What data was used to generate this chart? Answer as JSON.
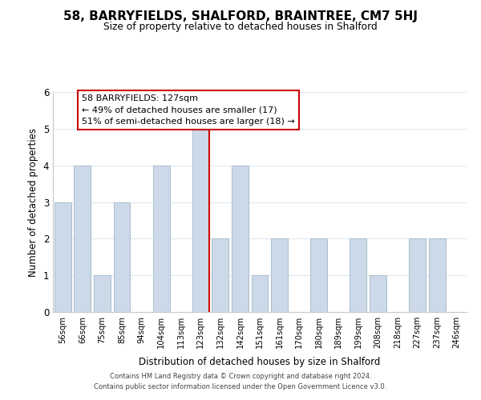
{
  "title": "58, BARRYFIELDS, SHALFORD, BRAINTREE, CM7 5HJ",
  "subtitle": "Size of property relative to detached houses in Shalford",
  "xlabel": "Distribution of detached houses by size in Shalford",
  "ylabel": "Number of detached properties",
  "bar_labels": [
    "56sqm",
    "66sqm",
    "75sqm",
    "85sqm",
    "94sqm",
    "104sqm",
    "113sqm",
    "123sqm",
    "132sqm",
    "142sqm",
    "151sqm",
    "161sqm",
    "170sqm",
    "180sqm",
    "189sqm",
    "199sqm",
    "208sqm",
    "218sqm",
    "227sqm",
    "237sqm",
    "246sqm"
  ],
  "bar_heights": [
    3,
    4,
    1,
    3,
    0,
    4,
    0,
    5,
    2,
    4,
    1,
    2,
    0,
    2,
    0,
    2,
    1,
    0,
    2,
    2,
    0
  ],
  "bar_color": "#ccd9e8",
  "bar_edge_color": "#a8bece",
  "highlight_index": 7,
  "highlight_line_color": "#cc0000",
  "ylim": [
    0,
    6
  ],
  "yticks": [
    0,
    1,
    2,
    3,
    4,
    5,
    6
  ],
  "annotation_title": "58 BARRYFIELDS: 127sqm",
  "annotation_line1": "← 49% of detached houses are smaller (17)",
  "annotation_line2": "51% of semi-detached houses are larger (18) →",
  "annotation_box_color": "#ffffff",
  "annotation_box_edge": "#cc0000",
  "footer_line1": "Contains HM Land Registry data © Crown copyright and database right 2024.",
  "footer_line2": "Contains public sector information licensed under the Open Government Licence v3.0.",
  "background_color": "#ffffff",
  "grid_color": "#dde8f0"
}
